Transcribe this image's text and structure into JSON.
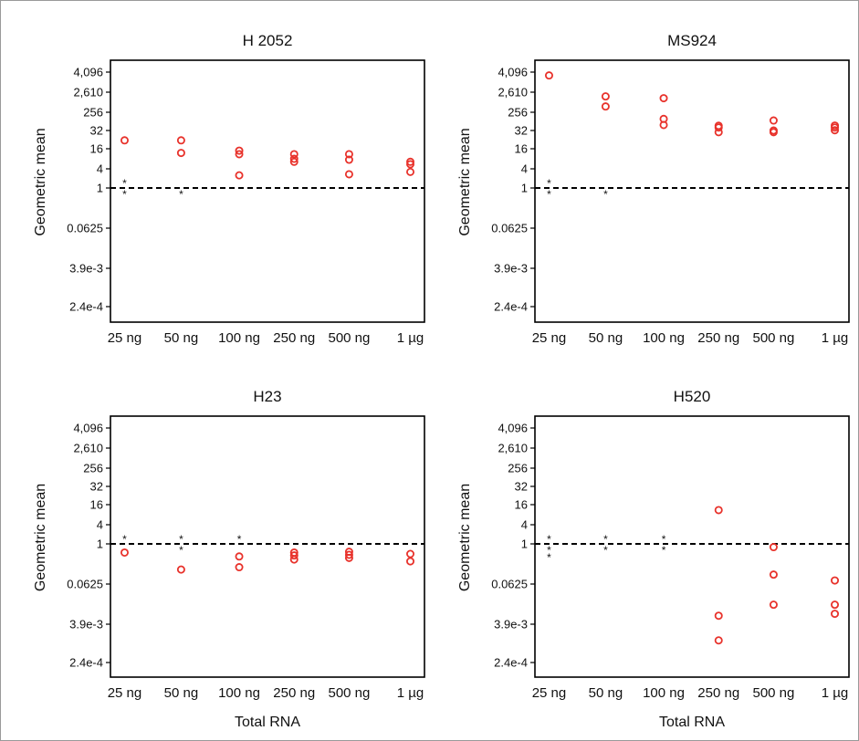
{
  "y_axis": {
    "label": "Geometric mean",
    "tick_labels": [
      "4,096",
      "2,610",
      "256",
      "32",
      "16",
      "4",
      "1",
      "0.0625",
      "3.9e-3",
      "2.4e-4"
    ],
    "tick_values": [
      4096,
      2610,
      256,
      32,
      16,
      4,
      1,
      0.0625,
      0.0039,
      0.00024
    ]
  },
  "x_axis": {
    "label": "Total RNA",
    "categories": [
      "25 ng",
      "50 ng",
      "100 ng",
      "250 ng",
      "500 ng",
      "1 µg"
    ]
  },
  "colors": {
    "points": "#e8322b",
    "reference_line": "#000000",
    "axes": "#000000",
    "stars": "#333333"
  },
  "chart_data": [
    {
      "type": "scatter",
      "title": "H 2052",
      "reference_line": 1,
      "y_scale": "categorical-log",
      "categories": [
        "25 ng",
        "50 ng",
        "100 ng",
        "250 ng",
        "500 ng",
        "1 µg"
      ],
      "points": {
        "25 ng": [
          22
        ],
        "50 ng": [
          22,
          12
        ],
        "100 ng": [
          14,
          11,
          2.5
        ],
        "250 ng": [
          11,
          8,
          6.5
        ],
        "500 ng": [
          11,
          7.5,
          2.7
        ],
        "1 µg": [
          6.5,
          5.5,
          3.2
        ]
      },
      "stars": {
        "25 ng": [
          "above",
          "below"
        ],
        "50 ng": [
          "below"
        ]
      }
    },
    {
      "type": "scatter",
      "title": "MS924",
      "reference_line": 1,
      "y_scale": "categorical-log",
      "categories": [
        "25 ng",
        "50 ng",
        "100 ng",
        "250 ng",
        "500 ng",
        "1 µg"
      ],
      "points": {
        "25 ng": [
          3800
        ],
        "50 ng": [
          1600,
          500
        ],
        "100 ng": [
          1300,
          120,
          60
        ],
        "250 ng": [
          55,
          45,
          30
        ],
        "500 ng": [
          100,
          32,
          30
        ],
        "1 µg": [
          56,
          45,
          33
        ]
      },
      "stars": {
        "25 ng": [
          "above",
          "below"
        ],
        "50 ng": [
          "below"
        ]
      }
    },
    {
      "type": "scatter",
      "title": "H23",
      "reference_line": 1,
      "y_scale": "categorical-log",
      "categories": [
        "25 ng",
        "50 ng",
        "100 ng",
        "250 ng",
        "500 ng",
        "1 µg"
      ],
      "points": {
        "25 ng": [
          0.55
        ],
        "50 ng": [
          0.17
        ],
        "100 ng": [
          0.42,
          0.2
        ],
        "250 ng": [
          0.55,
          0.45,
          0.34
        ],
        "500 ng": [
          0.58,
          0.47,
          0.38
        ],
        "1 µg": [
          0.5,
          0.3
        ]
      },
      "stars": {
        "25 ng": [
          "above"
        ],
        "50 ng": [
          "above",
          "below"
        ],
        "100 ng": [
          "above"
        ]
      }
    },
    {
      "type": "scatter",
      "title": "H520",
      "reference_line": 1,
      "y_scale": "categorical-log",
      "categories": [
        "25 ng",
        "50 ng",
        "100 ng",
        "250 ng",
        "500 ng",
        "1 µg"
      ],
      "points": {
        "25 ng": [],
        "50 ng": [],
        "100 ng": [],
        "250 ng": [
          11,
          0.007,
          0.0012
        ],
        "500 ng": [
          0.8,
          0.12,
          0.015
        ],
        "1 µg": [
          0.08,
          0.015,
          0.008
        ]
      },
      "stars": {
        "25 ng": [
          "above",
          "below",
          "below2"
        ],
        "50 ng": [
          "above",
          "below"
        ],
        "100 ng": [
          "above",
          "below"
        ]
      }
    }
  ]
}
